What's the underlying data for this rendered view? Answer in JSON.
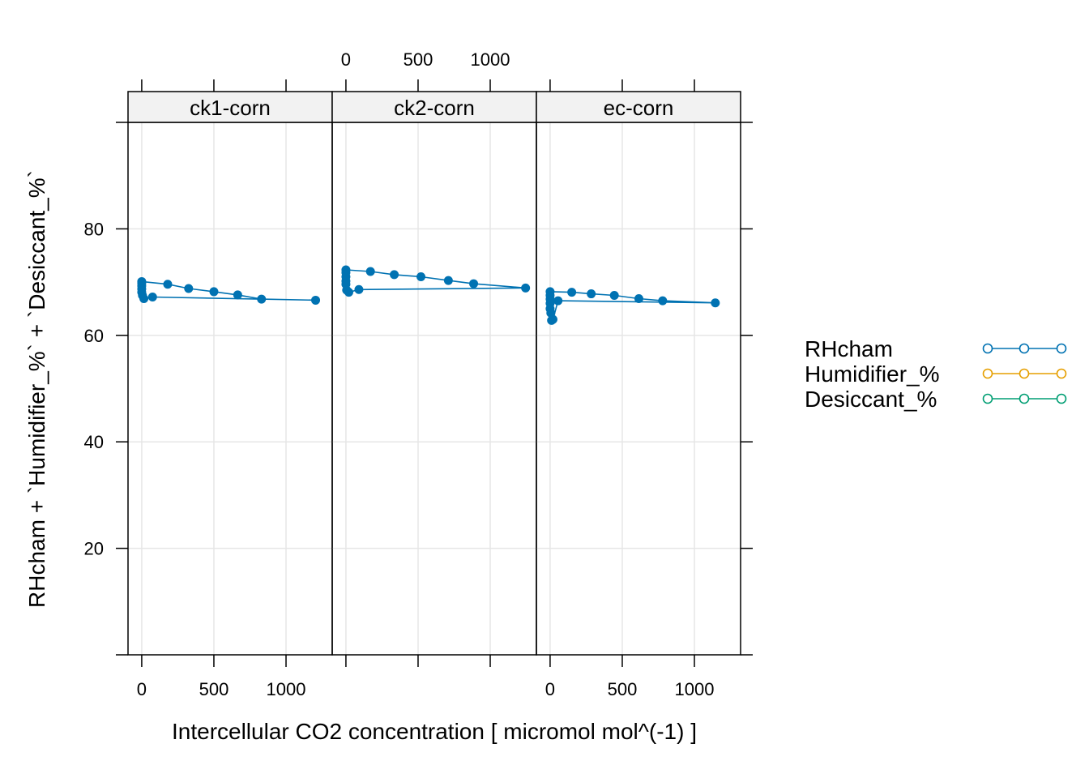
{
  "chart_data": {
    "type": "line",
    "xlabel": "Intercellular CO2 concentration [ micromol mol^(-1) ]",
    "ylabel": "RHcham + `Humidifier_%` + `Desiccant_%`",
    "xlim": [
      -95,
      1320
    ],
    "ylim": [
      0,
      100
    ],
    "x_ticks": [
      0,
      500,
      1000
    ],
    "x_tick_labels": [
      "0",
      "500",
      "1000"
    ],
    "y_ticks": [
      20,
      40,
      60,
      80
    ],
    "y_tick_labels": [
      "20",
      "40",
      "60",
      "80"
    ],
    "grid": true,
    "legend_position": "right",
    "legend": [
      {
        "name": "RHcham",
        "color": "#0072B2"
      },
      {
        "name": "Humidifier_%",
        "color": "#E69F00"
      },
      {
        "name": "Desiccant_%",
        "color": "#009E73"
      }
    ],
    "panels": [
      {
        "strip": "ck1-corn",
        "series": [
          {
            "name": "RHcham",
            "points": [
              [
                0,
                70.1
              ],
              [
                180,
                69.6
              ],
              [
                325,
                68.8
              ],
              [
                500,
                68.2
              ],
              [
                665,
                67.6
              ],
              [
                830,
                66.8
              ],
              [
                1205,
                66.6
              ],
              [
                75,
                67.2
              ],
              [
                15,
                66.9
              ],
              [
                5,
                67.5
              ],
              [
                0,
                68.1
              ],
              [
                0,
                68.7
              ],
              [
                0,
                69.3
              ],
              [
                0,
                69.8
              ]
            ]
          }
        ]
      },
      {
        "strip": "ck2-corn",
        "series": [
          {
            "name": "RHcham",
            "points": [
              [
                0,
                72.3
              ],
              [
                170,
                72.0
              ],
              [
                335,
                71.4
              ],
              [
                520,
                71.0
              ],
              [
                710,
                70.3
              ],
              [
                885,
                69.7
              ],
              [
                1245,
                68.9
              ],
              [
                90,
                68.6
              ],
              [
                20,
                68.1
              ],
              [
                5,
                68.5
              ],
              [
                0,
                69.6
              ],
              [
                0,
                70.2
              ],
              [
                0,
                71.0
              ],
              [
                0,
                71.8
              ]
            ]
          }
        ]
      },
      {
        "strip": "ec-corn",
        "series": [
          {
            "name": "RHcham",
            "points": [
              [
                0,
                68.2
              ],
              [
                150,
                68.1
              ],
              [
                285,
                67.8
              ],
              [
                445,
                67.5
              ],
              [
                615,
                66.9
              ],
              [
                780,
                66.5
              ],
              [
                1145,
                66.1
              ],
              [
                55,
                66.5
              ],
              [
                20,
                63.0
              ],
              [
                10,
                62.8
              ],
              [
                5,
                64.2
              ],
              [
                0,
                65.0
              ],
              [
                0,
                66.0
              ],
              [
                0,
                66.8
              ],
              [
                0,
                67.5
              ]
            ]
          }
        ]
      }
    ]
  }
}
